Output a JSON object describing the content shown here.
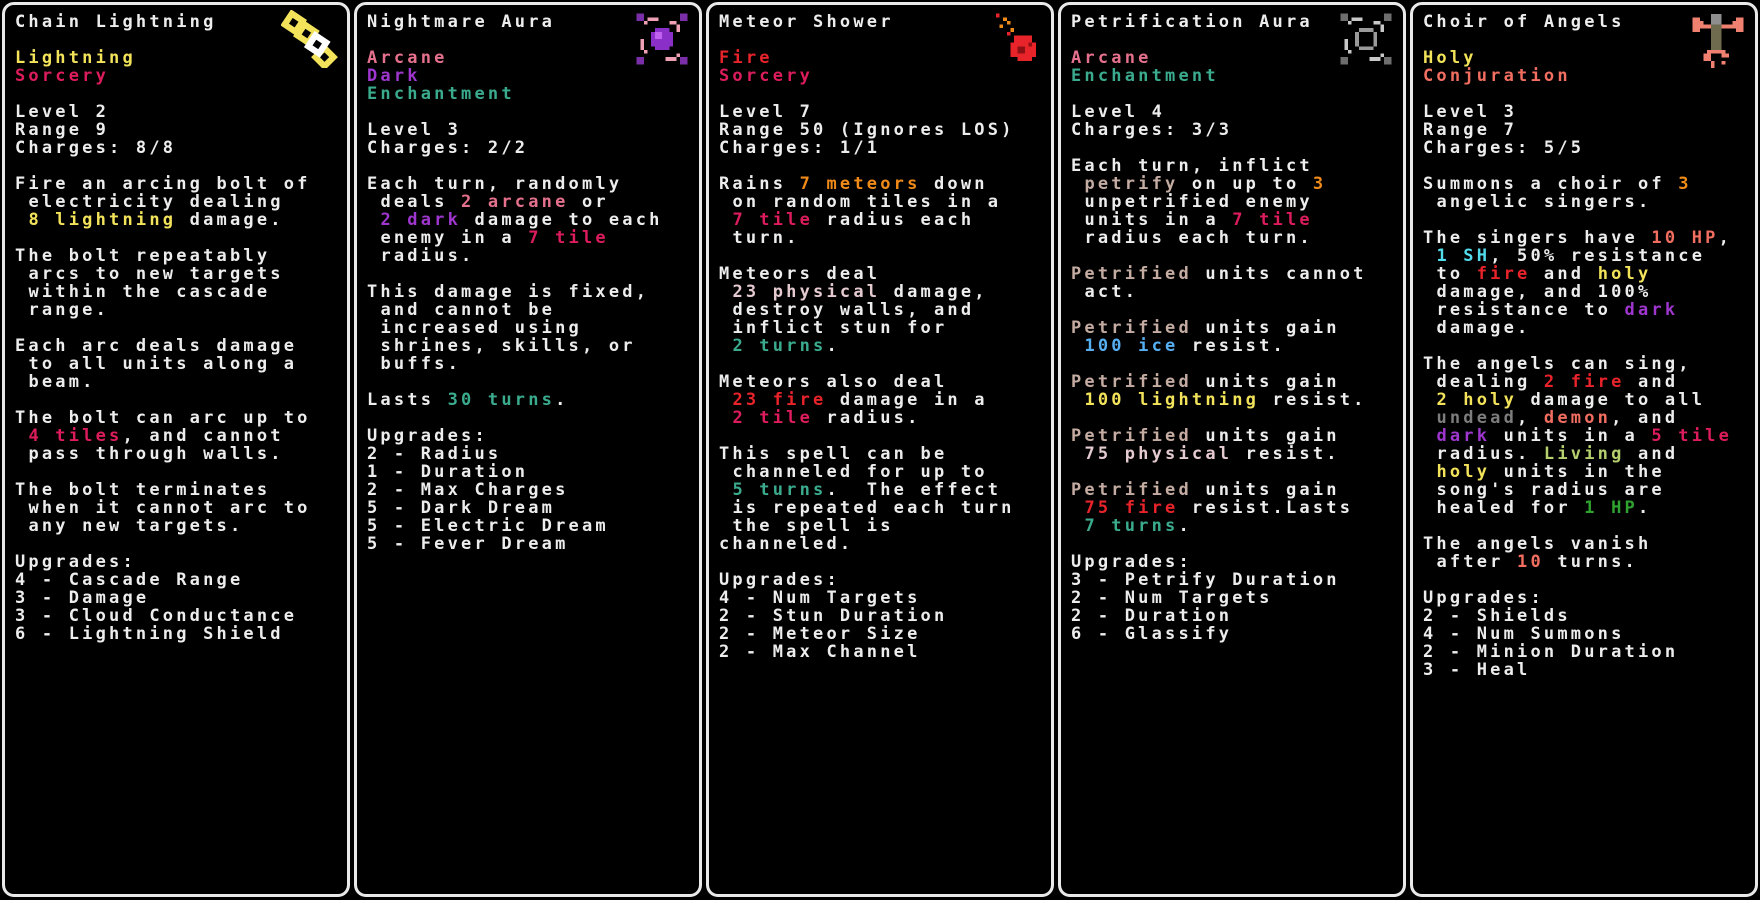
{
  "colors": {
    "white": "#EDEDED",
    "yellow": "#F2E35A",
    "crimson": "#DD1C5C",
    "arcane": "#E5718D",
    "purple": "#9F36CF",
    "teal": "#3BAB8E",
    "fire": "#E8232A",
    "orange": "#F08A18",
    "physical": "#E5CBD0",
    "ice": "#57AFF2",
    "petrify": "#C4ACA2",
    "gray": "#7D7D7D",
    "salmon": "#F26E60",
    "living": "#B6D06E",
    "heal": "#2FA32F",
    "cyan": "#52DCEC"
  },
  "cards": [
    {
      "title": "Chain Lightning",
      "icon": "chain-lightning-icon",
      "tags": [
        {
          "text": "Lightning",
          "color": "yellow"
        },
        {
          "text": "Sorcery",
          "color": "crimson"
        }
      ],
      "stats": [
        "Level 2",
        "Range 9",
        "Charges: 8/8"
      ],
      "paragraphs": [
        [
          {
            "t": "Fire an arcing bolt of\n electricity dealing\n ",
            "c": "white"
          },
          {
            "t": "8 lightning",
            "c": "yellow"
          },
          {
            "t": " damage.",
            "c": "white"
          }
        ],
        [
          {
            "t": "The bolt repeatably\n arcs to new targets\n within the cascade\n range.",
            "c": "white"
          }
        ],
        [
          {
            "t": "Each arc deals damage\n to all units along a\n beam.",
            "c": "white"
          }
        ],
        [
          {
            "t": "The bolt can arc up to\n ",
            "c": "white"
          },
          {
            "t": "4 tiles",
            "c": "crimson"
          },
          {
            "t": ", and cannot\n pass through walls.",
            "c": "white"
          }
        ],
        [
          {
            "t": "The bolt terminates\n when it cannot arc to\n any new targets.",
            "c": "white"
          }
        ]
      ],
      "upgrades_label": "Upgrades:",
      "upgrades": [
        "4 - Cascade Range",
        "3 - Damage",
        "3 - Cloud Conductance",
        "6 - Lightning Shield"
      ]
    },
    {
      "title": "Nightmare Aura",
      "icon": "nightmare-aura-icon",
      "tags": [
        {
          "text": "Arcane",
          "color": "arcane"
        },
        {
          "text": "Dark",
          "color": "purple"
        },
        {
          "text": "Enchantment",
          "color": "teal"
        }
      ],
      "stats": [
        "Level 3",
        "Charges: 2/2"
      ],
      "paragraphs": [
        [
          {
            "t": "Each turn, randomly\n deals ",
            "c": "white"
          },
          {
            "t": "2 arcane",
            "c": "arcane"
          },
          {
            "t": " or\n ",
            "c": "white"
          },
          {
            "t": "2 dark",
            "c": "purple"
          },
          {
            "t": " damage to each\n enemy in a ",
            "c": "white"
          },
          {
            "t": "7 tile",
            "c": "crimson"
          },
          {
            "t": "\n radius.",
            "c": "white"
          }
        ],
        [
          {
            "t": "This damage is fixed,\n and cannot be\n increased using\n shrines, skills, or\n buffs.",
            "c": "white"
          }
        ],
        [
          {
            "t": "Lasts ",
            "c": "white"
          },
          {
            "t": "30 turns",
            "c": "teal"
          },
          {
            "t": ".",
            "c": "white"
          }
        ]
      ],
      "upgrades_label": "Upgrades:",
      "upgrades": [
        "2 - Radius",
        "1 - Duration",
        "2 - Max Charges",
        "5 - Dark Dream",
        "5 - Electric Dream",
        "5 - Fever Dream"
      ]
    },
    {
      "title": "Meteor Shower",
      "icon": "meteor-shower-icon",
      "tags": [
        {
          "text": "Fire",
          "color": "fire"
        },
        {
          "text": "Sorcery",
          "color": "crimson"
        }
      ],
      "stats": [
        "Level 7",
        "Range 50 (Ignores LOS)",
        "Charges: 1/1"
      ],
      "paragraphs": [
        [
          {
            "t": "Rains ",
            "c": "white"
          },
          {
            "t": "7 meteors",
            "c": "orange"
          },
          {
            "t": " down\n on random tiles in a\n ",
            "c": "white"
          },
          {
            "t": "7 tile",
            "c": "crimson"
          },
          {
            "t": " radius each\n turn.",
            "c": "white"
          }
        ],
        [
          {
            "t": "Meteors deal\n ",
            "c": "white"
          },
          {
            "t": "23 physical",
            "c": "physical"
          },
          {
            "t": " damage,\n destroy walls, and\n inflict stun for\n ",
            "c": "white"
          },
          {
            "t": "2 turns",
            "c": "teal"
          },
          {
            "t": ".",
            "c": "white"
          }
        ],
        [
          {
            "t": "Meteors also deal\n ",
            "c": "white"
          },
          {
            "t": "23 fire",
            "c": "fire"
          },
          {
            "t": " damage in a\n ",
            "c": "white"
          },
          {
            "t": "2 tile",
            "c": "crimson"
          },
          {
            "t": " radius.",
            "c": "white"
          }
        ],
        [
          {
            "t": "This spell can be\n channeled for up to\n ",
            "c": "white"
          },
          {
            "t": "5 turns",
            "c": "teal"
          },
          {
            "t": ".  The effect\n is repeated each turn\n the spell is channeled.",
            "c": "white"
          }
        ]
      ],
      "upgrades_label": "Upgrades:",
      "upgrades": [
        "4 - Num Targets",
        "2 - Stun Duration",
        "2 - Meteor Size",
        "2 - Max Channel"
      ]
    },
    {
      "title": "Petrification Aura",
      "icon": "petrification-aura-icon",
      "tags": [
        {
          "text": "Arcane",
          "color": "arcane"
        },
        {
          "text": "Enchantment",
          "color": "teal"
        }
      ],
      "stats": [
        "Level 4",
        "Charges: 3/3"
      ],
      "paragraphs": [
        [
          {
            "t": "Each turn, inflict\n ",
            "c": "white"
          },
          {
            "t": "petrify",
            "c": "petrify"
          },
          {
            "t": " on up to ",
            "c": "white"
          },
          {
            "t": "3",
            "c": "orange"
          },
          {
            "t": "\n unpetrified enemy\n units in a ",
            "c": "white"
          },
          {
            "t": "7 tile",
            "c": "crimson"
          },
          {
            "t": "\n radius each turn.",
            "c": "white"
          }
        ],
        [
          {
            "t": "Petrified",
            "c": "petrify"
          },
          {
            "t": " units cannot\n act.",
            "c": "white"
          }
        ],
        [
          {
            "t": "Petrified",
            "c": "petrify"
          },
          {
            "t": " units gain\n ",
            "c": "white"
          },
          {
            "t": "100 ice",
            "c": "ice"
          },
          {
            "t": " resist.",
            "c": "white"
          }
        ],
        [
          {
            "t": "Petrified",
            "c": "petrify"
          },
          {
            "t": " units gain\n ",
            "c": "white"
          },
          {
            "t": "100 lightning",
            "c": "yellow"
          },
          {
            "t": " resist.",
            "c": "white"
          }
        ],
        [
          {
            "t": "Petrified",
            "c": "petrify"
          },
          {
            "t": " units gain\n ",
            "c": "white"
          },
          {
            "t": "75 physical",
            "c": "physical"
          },
          {
            "t": " resist.",
            "c": "white"
          }
        ],
        [
          {
            "t": "Petrified",
            "c": "petrify"
          },
          {
            "t": " units gain\n ",
            "c": "white"
          },
          {
            "t": "75 fire",
            "c": "fire"
          },
          {
            "t": " resist.Lasts\n ",
            "c": "white"
          },
          {
            "t": "7 turns",
            "c": "teal"
          },
          {
            "t": ".",
            "c": "white"
          }
        ]
      ],
      "upgrades_label": "Upgrades:",
      "upgrades": [
        "3 - Petrify Duration",
        "2 - Num Targets",
        "2 - Duration",
        "6 - Glassify"
      ]
    },
    {
      "title": "Choir of Angels",
      "icon": "choir-of-angels-icon",
      "tags": [
        {
          "text": "Holy",
          "color": "yellow"
        },
        {
          "text": "Conjuration",
          "color": "salmon"
        }
      ],
      "stats": [
        "Level 3",
        "Range 7",
        "Charges: 5/5"
      ],
      "paragraphs": [
        [
          {
            "t": "Summons a choir of ",
            "c": "white"
          },
          {
            "t": "3",
            "c": "orange"
          },
          {
            "t": "\n angelic singers.",
            "c": "white"
          }
        ],
        [
          {
            "t": "The singers have ",
            "c": "white"
          },
          {
            "t": "10 HP",
            "c": "salmon"
          },
          {
            "t": ",\n ",
            "c": "white"
          },
          {
            "t": "1 SH",
            "c": "cyan"
          },
          {
            "t": ", 50% resistance\n to ",
            "c": "white"
          },
          {
            "t": "fire",
            "c": "fire"
          },
          {
            "t": " and ",
            "c": "white"
          },
          {
            "t": "holy",
            "c": "yellow"
          },
          {
            "t": "\n damage, and 100%\n resistance to ",
            "c": "white"
          },
          {
            "t": "dark",
            "c": "purple"
          },
          {
            "t": "\n damage.",
            "c": "white"
          }
        ],
        [
          {
            "t": "The angels can sing,\n dealing ",
            "c": "white"
          },
          {
            "t": "2 fire",
            "c": "fire"
          },
          {
            "t": " and\n ",
            "c": "white"
          },
          {
            "t": "2 holy",
            "c": "yellow"
          },
          {
            "t": " damage to all\n ",
            "c": "white"
          },
          {
            "t": "undead",
            "c": "gray"
          },
          {
            "t": ", ",
            "c": "white"
          },
          {
            "t": "demon",
            "c": "salmon"
          },
          {
            "t": ", and\n ",
            "c": "white"
          },
          {
            "t": "dark",
            "c": "purple"
          },
          {
            "t": " units in a ",
            "c": "white"
          },
          {
            "t": "5 tile",
            "c": "crimson"
          },
          {
            "t": "\n radius. ",
            "c": "white"
          },
          {
            "t": "Living",
            "c": "living"
          },
          {
            "t": " and\n ",
            "c": "white"
          },
          {
            "t": "holy",
            "c": "yellow"
          },
          {
            "t": " units in the\n song's radius are\n healed for ",
            "c": "white"
          },
          {
            "t": "1 HP",
            "c": "heal"
          },
          {
            "t": ".",
            "c": "white"
          }
        ],
        [
          {
            "t": "The angels vanish\n after ",
            "c": "white"
          },
          {
            "t": "10",
            "c": "salmon"
          },
          {
            "t": " turns.",
            "c": "white"
          }
        ]
      ],
      "upgrades_label": "Upgrades:",
      "upgrades": [
        "2 - Shields",
        "4 - Num Summons",
        "2 - Minion Duration",
        "3 - Heal"
      ]
    }
  ]
}
